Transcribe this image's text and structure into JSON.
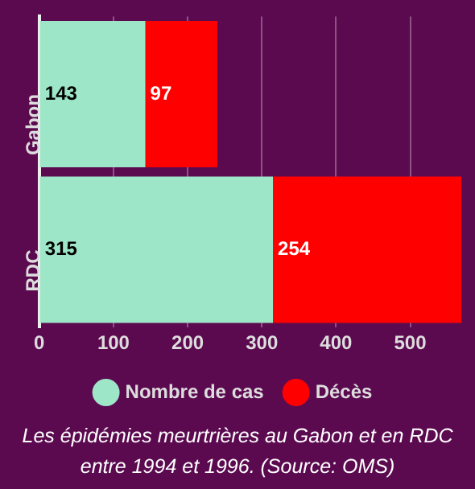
{
  "chart_data": {
    "type": "bar",
    "orientation": "horizontal",
    "stacked": true,
    "categories": [
      "Gabon",
      "RDC"
    ],
    "series": [
      {
        "name": "Nombre de cas",
        "color": "#9ee6c8",
        "values": [
          143,
          315
        ]
      },
      {
        "name": "Décès",
        "color": "#ff0000",
        "values": [
          97,
          254
        ]
      }
    ],
    "xlim": [
      0,
      570
    ],
    "xticks": [
      0,
      100,
      200,
      300,
      400,
      500
    ],
    "grid": "x",
    "legend": "bottom",
    "data_labels": true,
    "annotations": [
      "Les épidémies meurtrières au Gabon et en RDC entre 1994 et 1996. (Source: OMS)"
    ]
  }
}
